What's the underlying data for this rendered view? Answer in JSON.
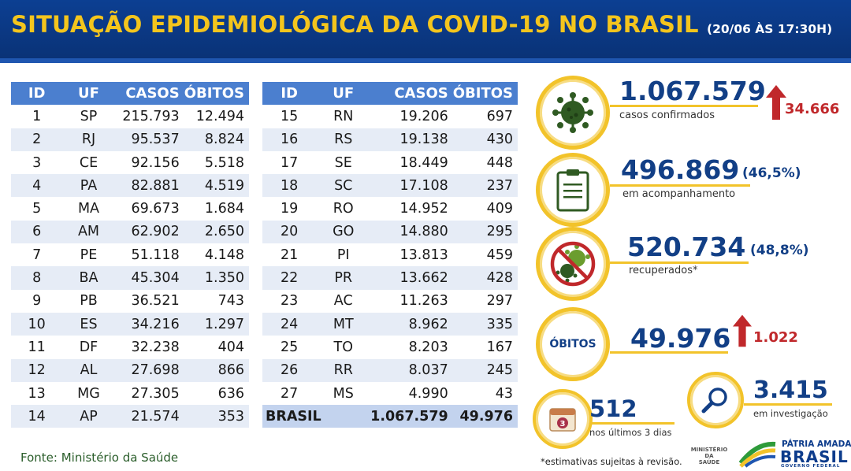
{
  "header": {
    "title": "SITUAÇÃO EPIDEMIOLÓGICA DA COVID-19 NO BRASIL",
    "date": "(20/06 ÀS 17:30H)"
  },
  "table": {
    "headers": [
      "ID",
      "UF",
      "CASOS",
      "ÓBITOS"
    ],
    "left_rows": [
      [
        "1",
        "SP",
        "215.793",
        "12.494"
      ],
      [
        "2",
        "RJ",
        "95.537",
        "8.824"
      ],
      [
        "3",
        "CE",
        "92.156",
        "5.518"
      ],
      [
        "4",
        "PA",
        "82.881",
        "4.519"
      ],
      [
        "5",
        "MA",
        "69.673",
        "1.684"
      ],
      [
        "6",
        "AM",
        "62.902",
        "2.650"
      ],
      [
        "7",
        "PE",
        "51.118",
        "4.148"
      ],
      [
        "8",
        "BA",
        "45.304",
        "1.350"
      ],
      [
        "9",
        "PB",
        "36.521",
        "743"
      ],
      [
        "10",
        "ES",
        "34.216",
        "1.297"
      ],
      [
        "11",
        "DF",
        "32.238",
        "404"
      ],
      [
        "12",
        "AL",
        "27.698",
        "866"
      ],
      [
        "13",
        "MG",
        "27.305",
        "636"
      ],
      [
        "14",
        "AP",
        "21.574",
        "353"
      ]
    ],
    "right_rows": [
      [
        "15",
        "RN",
        "19.206",
        "697"
      ],
      [
        "16",
        "RS",
        "19.138",
        "430"
      ],
      [
        "17",
        "SE",
        "18.449",
        "448"
      ],
      [
        "18",
        "SC",
        "17.108",
        "237"
      ],
      [
        "19",
        "RO",
        "14.952",
        "409"
      ],
      [
        "20",
        "GO",
        "14.880",
        "295"
      ],
      [
        "21",
        "PI",
        "13.813",
        "459"
      ],
      [
        "22",
        "PR",
        "13.662",
        "428"
      ],
      [
        "23",
        "AC",
        "11.263",
        "297"
      ],
      [
        "24",
        "MT",
        "8.962",
        "335"
      ],
      [
        "25",
        "TO",
        "8.203",
        "167"
      ],
      [
        "26",
        "RR",
        "8.037",
        "245"
      ],
      [
        "27",
        "MS",
        "4.990",
        "43"
      ]
    ],
    "total": {
      "label": "BRASIL",
      "casos": "1.067.579",
      "obitos": "49.976"
    }
  },
  "source": "Fonte: Ministério da Saúde",
  "stats": {
    "confirmed": {
      "value": "1.067.579",
      "label": "casos confirmados",
      "delta": "34.666",
      "icon": "virus-icon"
    },
    "monitoring": {
      "value": "496.869",
      "pct": "(46,5%)",
      "label": "em acompanhamento",
      "icon": "clipboard-icon"
    },
    "recovered": {
      "value": "520.734",
      "pct": "(48,8%)",
      "label": "recuperados*",
      "icon": "no-virus-icon"
    },
    "deaths": {
      "label": "ÓBITOS",
      "value": "49.976",
      "delta": "1.022"
    },
    "last_days": {
      "value": "512",
      "label": "nos últimos 3 dias",
      "badge": "3",
      "icon": "calendar-icon"
    },
    "investigation": {
      "value": "3.415",
      "label": "em investigação",
      "icon": "magnifier-icon"
    }
  },
  "footnote": "*estimativas sujeitas à revisão.",
  "footer": {
    "ministry": [
      "MINISTÉRIO DA",
      "SAÚDE"
    ],
    "brand_top": "PÁTRIA AMADA",
    "brand_main": "BRASIL",
    "brand_sub": "GOVERNO FEDERAL"
  },
  "colors": {
    "header_bg": "#0c3f92",
    "title_yellow": "#f4c51d",
    "table_header": "#4b7fcf",
    "row_alt": "#e6ecf6",
    "value_blue": "#123f86",
    "delta_red": "#c0282b",
    "ring_yellow": "#f2c32a"
  }
}
